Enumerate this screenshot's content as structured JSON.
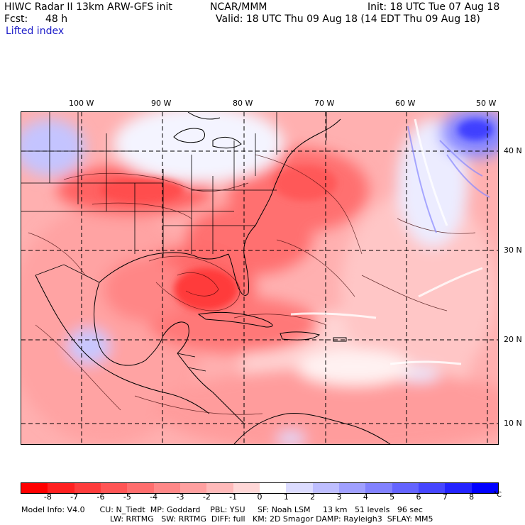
{
  "header": {
    "title": "HIWC Radar II 13km ARW-GFS init",
    "org": "NCAR/MMM",
    "init": "Init: 18 UTC Tue 07 Aug 18",
    "fcst_label": "Fcst:",
    "fcst_value": "48 h",
    "valid": "Valid: 18 UTC Thu 09 Aug 18 (14 EDT Thu 09 Aug 18)",
    "field": "Lifted index"
  },
  "map": {
    "lon_labels": [
      "100 W",
      "90 W",
      "80 W",
      "70 W",
      "60 W",
      "50 W"
    ],
    "lat_labels": [
      "40 N",
      "30 N",
      "20 N",
      "10 N"
    ]
  },
  "colorbar": {
    "unit": "°C",
    "tick_labels": [
      "-8",
      "-7",
      "-6",
      "-5",
      "-4",
      "-3",
      "-2",
      "-1",
      "0",
      "1",
      "2",
      "3",
      "4",
      "5",
      "6",
      "7",
      "8"
    ],
    "colors": [
      "#ff0000",
      "#ff2020",
      "#fe3c3c",
      "#ff5555",
      "#ff6e6e",
      "#ff8888",
      "#ffa0a0",
      "#ffbaba",
      "#ffd7d7",
      "#ffffff",
      "#dcdcff",
      "#bebeff",
      "#a0a0ff",
      "#8282ff",
      "#6464ff",
      "#4646ff",
      "#2323ff",
      "#0000ff"
    ]
  },
  "info": {
    "line1": "Model Info: V4.0      CU: N_Tiedt  MP: Goddard    PBL: YSU     SF: Noah LSM     13 km   51 levels   96 sec",
    "line2": "LW: RRTMG   SW: RRTMG  DIFF: full   KM: 2D Smagor DAMP: Rayleigh3  SFLAY: MM5"
  }
}
